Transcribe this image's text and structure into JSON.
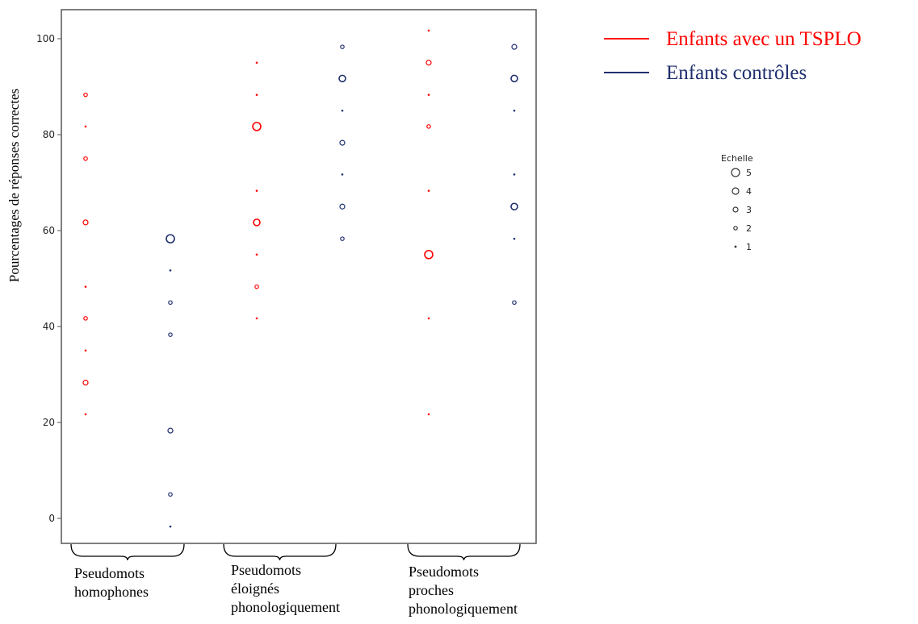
{
  "chart_data": {
    "type": "scatter",
    "ylabel": "Pourcentages de réponses correctes",
    "ylim": [
      -5,
      106
    ],
    "yticks": [
      0,
      20,
      40,
      60,
      80,
      100
    ],
    "ytick_labels": [
      "0",
      "20",
      "40",
      "60",
      "80",
      "100"
    ],
    "grid": false,
    "groups": [
      {
        "lines": [
          "Pseudomots",
          "homophones"
        ]
      },
      {
        "lines": [
          "Pseudomots",
          "éloignés",
          "phonologiquement"
        ]
      },
      {
        "lines": [
          "Pseudomots",
          "proches",
          "phonologiquement"
        ]
      }
    ],
    "series": [
      {
        "name": "Enfants avec un TSPLO",
        "color": "#ff0000",
        "group": 0,
        "points": [
          [
            88.3,
            2
          ],
          [
            81.7,
            1
          ],
          [
            75,
            2
          ],
          [
            61.7,
            3
          ],
          [
            48.3,
            1
          ],
          [
            41.7,
            2
          ],
          [
            35,
            1
          ],
          [
            28.3,
            3
          ],
          [
            21.7,
            1
          ]
        ]
      },
      {
        "name": "Enfants contrôles",
        "color": "#1f2f6e",
        "group": 0,
        "points": [
          [
            58.3,
            5
          ],
          [
            51.7,
            1
          ],
          [
            45,
            2
          ],
          [
            38.3,
            2
          ],
          [
            18.3,
            3
          ],
          [
            5,
            2
          ],
          [
            -1.7,
            1
          ]
        ]
      },
      {
        "name": "Enfants avec un TSPLO",
        "color": "#ff0000",
        "group": 1,
        "points": [
          [
            95,
            1
          ],
          [
            88.3,
            1
          ],
          [
            81.7,
            5
          ],
          [
            68.3,
            1
          ],
          [
            61.7,
            4
          ],
          [
            55,
            1
          ],
          [
            48.3,
            2
          ],
          [
            41.7,
            1
          ]
        ]
      },
      {
        "name": "Enfants contrôles",
        "color": "#1f2f6e",
        "group": 1,
        "points": [
          [
            98.3,
            2
          ],
          [
            91.7,
            4
          ],
          [
            85,
            1
          ],
          [
            78.3,
            3
          ],
          [
            71.7,
            1
          ],
          [
            65,
            3
          ],
          [
            58.3,
            2
          ]
        ]
      },
      {
        "name": "Enfants avec un TSPLO",
        "color": "#ff0000",
        "group": 2,
        "points": [
          [
            101.7,
            1
          ],
          [
            95,
            3
          ],
          [
            88.3,
            1
          ],
          [
            81.7,
            2
          ],
          [
            68.3,
            1
          ],
          [
            55,
            5
          ],
          [
            41.7,
            1
          ],
          [
            21.7,
            1
          ]
        ]
      },
      {
        "name": "Enfants contrôles",
        "color": "#1f2f6e",
        "group": 2,
        "points": [
          [
            98.3,
            3
          ],
          [
            91.7,
            4
          ],
          [
            85,
            1
          ],
          [
            71.7,
            1
          ],
          [
            65,
            4
          ],
          [
            58.3,
            1
          ],
          [
            45,
            2
          ]
        ]
      }
    ],
    "legend": [
      {
        "label": "Enfants avec un TSPLO",
        "color": "#ff0000"
      },
      {
        "label": "Enfants contrôles",
        "color": "#1f2f6e"
      }
    ],
    "size_legend": {
      "title": "Echelle",
      "items": [
        "5",
        "4",
        "3",
        "2",
        "1"
      ],
      "values": [
        5,
        4,
        3,
        2,
        1
      ]
    }
  }
}
